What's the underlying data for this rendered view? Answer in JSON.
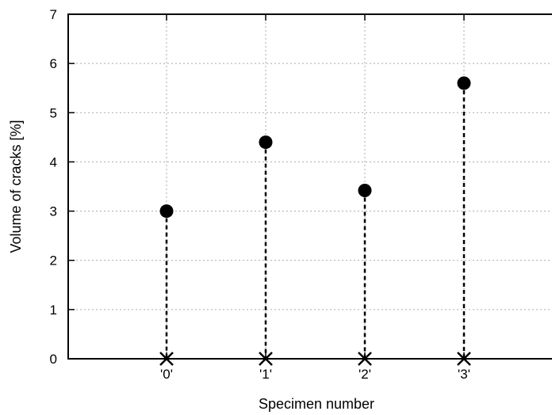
{
  "chart_data": {
    "type": "scatter",
    "xlabel": "Specimen number",
    "ylabel": "Volume of cracks [%]",
    "categories": [
      "'0'",
      "'1'",
      "'2'",
      "'3'"
    ],
    "values": [
      3.0,
      4.4,
      3.42,
      5.6
    ],
    "baseline_markers": [
      0,
      0,
      0,
      0
    ],
    "drop_lines": "dashed",
    "ylim": [
      0,
      7
    ],
    "yticks": [
      "0",
      "1",
      "2",
      "3",
      "4",
      "5",
      "6",
      "7"
    ],
    "grid": true,
    "legend": "none"
  }
}
